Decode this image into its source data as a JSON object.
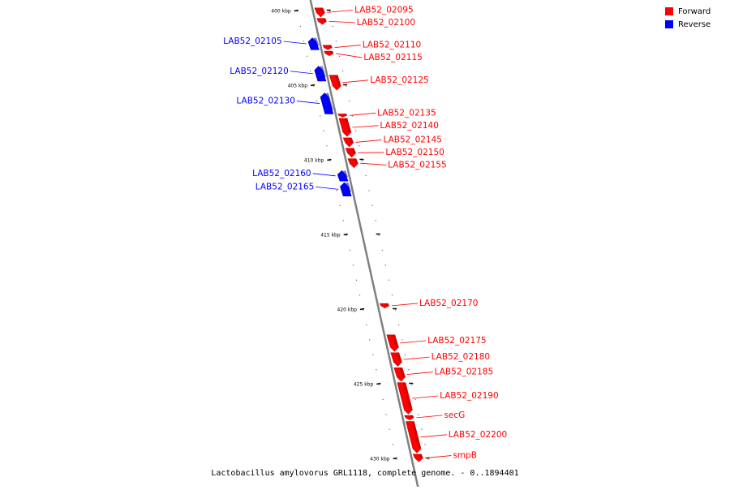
{
  "colors": {
    "forward": "#ff0000",
    "forward_dark": "#c00000",
    "reverse": "#0000ff",
    "reverse_dark": "#0000b0",
    "axis": "#808080"
  },
  "legend": {
    "forward_label": "Forward",
    "reverse_label": "Reverse"
  },
  "caption": "Lactobacillus amylovorus GRL1118, complete genome. - 0..1894401",
  "ticks": [
    {
      "label": "400 kbp",
      "kbp": 400
    },
    {
      "label": "405 kbp",
      "kbp": 405
    },
    {
      "label": "410 kbp",
      "kbp": 410
    },
    {
      "label": "415 kbp",
      "kbp": 415
    },
    {
      "label": "420 kbp",
      "kbp": 420
    },
    {
      "label": "425 kbp",
      "kbp": 425
    },
    {
      "label": "430 kbp",
      "kbp": 430
    }
  ],
  "genes": [
    {
      "name": "LAB52_02095",
      "strand": "forward",
      "start": 399.8,
      "end": 400.4
    },
    {
      "name": "LAB52_02100",
      "strand": "forward",
      "start": 400.5,
      "end": 400.9
    },
    {
      "name": "LAB52_02105",
      "strand": "reverse",
      "start": 401.8,
      "end": 402.6
    },
    {
      "name": "LAB52_02110",
      "strand": "forward",
      "start": 402.3,
      "end": 402.6
    },
    {
      "name": "LAB52_02115",
      "strand": "forward",
      "start": 402.7,
      "end": 403.0
    },
    {
      "name": "LAB52_02120",
      "strand": "reverse",
      "start": 403.7,
      "end": 404.7
    },
    {
      "name": "LAB52_02125",
      "strand": "forward",
      "start": 404.3,
      "end": 405.3
    },
    {
      "name": "LAB52_02130",
      "strand": "reverse",
      "start": 405.5,
      "end": 406.9
    },
    {
      "name": "LAB52_02135",
      "strand": "forward",
      "start": 406.9,
      "end": 407.1
    },
    {
      "name": "LAB52_02140",
      "strand": "forward",
      "start": 407.2,
      "end": 408.4
    },
    {
      "name": "LAB52_02145",
      "strand": "forward",
      "start": 408.5,
      "end": 409.1
    },
    {
      "name": "LAB52_02150",
      "strand": "forward",
      "start": 409.2,
      "end": 409.8
    },
    {
      "name": "LAB52_02155",
      "strand": "forward",
      "start": 409.9,
      "end": 410.5
    },
    {
      "name": "LAB52_02160",
      "strand": "reverse",
      "start": 410.7,
      "end": 411.4
    },
    {
      "name": "LAB52_02165",
      "strand": "reverse",
      "start": 411.5,
      "end": 412.4
    },
    {
      "name": "LAB52_02170",
      "strand": "forward",
      "start": 419.6,
      "end": 419.9
    },
    {
      "name": "LAB52_02175",
      "strand": "forward",
      "start": 421.7,
      "end": 422.8
    },
    {
      "name": "LAB52_02180",
      "strand": "forward",
      "start": 422.9,
      "end": 423.8
    },
    {
      "name": "LAB52_02185",
      "strand": "forward",
      "start": 423.9,
      "end": 424.8
    },
    {
      "name": "LAB52_02190",
      "strand": "forward",
      "start": 424.9,
      "end": 427.0
    },
    {
      "name": "secG",
      "strand": "forward",
      "start": 427.1,
      "end": 427.4
    },
    {
      "name": "LAB52_02200",
      "strand": "forward",
      "start": 427.5,
      "end": 429.6
    },
    {
      "name": "smpB",
      "strand": "forward",
      "start": 429.7,
      "end": 430.2
    }
  ]
}
